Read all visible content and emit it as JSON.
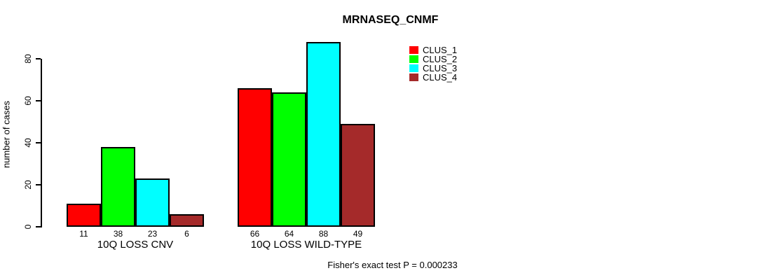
{
  "chart_data": {
    "type": "bar",
    "title": "MRNASEQ_CNMF",
    "ylabel": "number of cases",
    "xlabel": "",
    "categories": [
      "10Q LOSS CNV",
      "10Q LOSS WILD-TYPE"
    ],
    "series": [
      {
        "name": "CLUS_1",
        "color": "#ff0000",
        "values": [
          11,
          66
        ]
      },
      {
        "name": "CLUS_2",
        "color": "#00ff00",
        "values": [
          38,
          64
        ]
      },
      {
        "name": "CLUS_3",
        "color": "#00ffff",
        "values": [
          23,
          88
        ]
      },
      {
        "name": "CLUS_4",
        "color": "#a52a2a",
        "values": [
          6,
          49
        ]
      }
    ],
    "bar_value_labels_shown": true,
    "yticks": [
      0,
      20,
      40,
      60,
      80
    ],
    "ylim": [
      0,
      90
    ],
    "grid": false,
    "legend_position": "right-top",
    "annotation": "Fisher's exact test P = 0.000233"
  },
  "colors": {
    "axis": "#000000",
    "text": "#000000",
    "background": "#ffffff"
  }
}
